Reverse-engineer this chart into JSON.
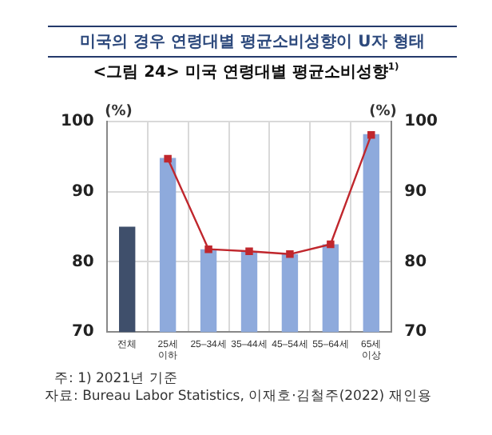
{
  "chart_data": {
    "type": "bar",
    "title": "미국의 경우 연령대별 평균소비성향이 U자 형태",
    "subtitle": "<그림 24> 미국 연령대별 평균소비성향$^{1)}$",
    "ylabel": "(%)",
    "y2label": "(%)",
    "categories": [
      "전체",
      "25세 이하",
      "25–34세",
      "35–44세",
      "45–54세",
      "55–64세",
      "65세 이상"
    ],
    "series": [
      {
        "colors": [
          "#3f4f6b",
          "#8eaadc",
          "#8eaadc",
          "#8eaadc",
          "#8eaadc",
          "#8eaadc",
          "#8eaadc"
        ],
        "values": [
          85,
          94.8,
          81.8,
          81.5,
          81.1,
          82.5,
          98.2
        ]
      },
      {
        "type": "line",
        "axis": "y2",
        "color": "#c0272d",
        "marker": "square",
        "values": [
          null,
          94.7,
          81.8,
          81.5,
          81.1,
          82.5,
          98.1
        ]
      }
    ],
    "ylim": [
      70,
      100
    ],
    "yticks": [
      70,
      80,
      90,
      100
    ],
    "y2lim": [
      70,
      100
    ],
    "y2ticks": [
      70,
      80,
      90,
      100
    ],
    "grid": true,
    "legend": false,
    "annotations": [
      "주: 1) 2021년 기준",
      "자료: Bureau Labor Statistics, 이재호·김철주(2022) 재인용"
    ]
  }
}
